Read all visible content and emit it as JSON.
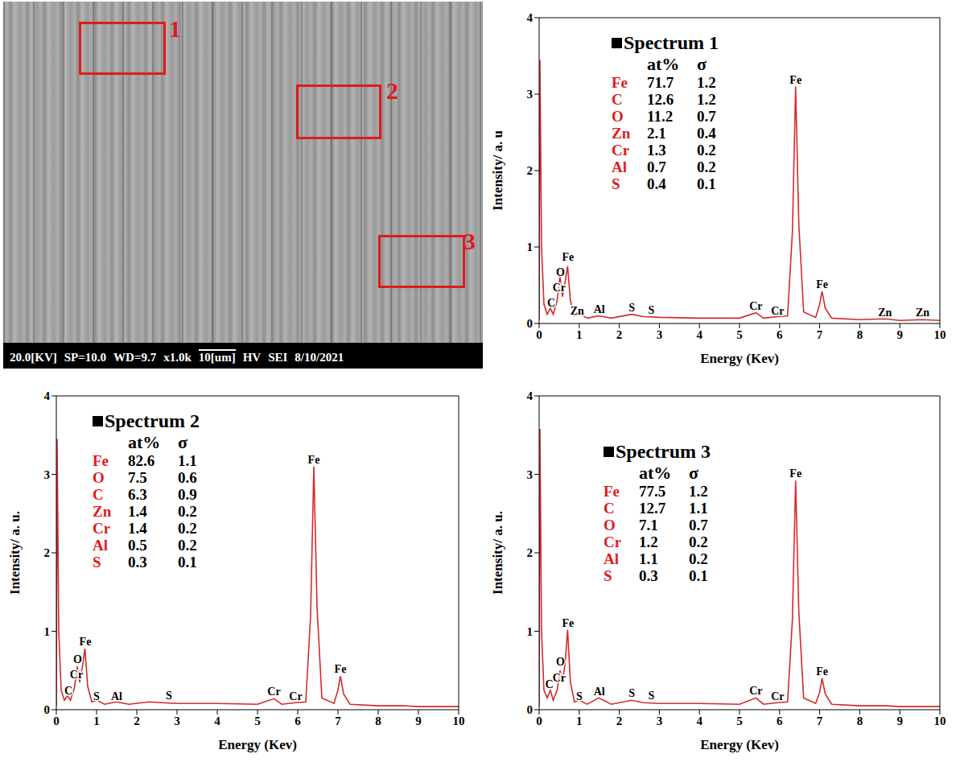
{
  "image": {
    "region_labels": [
      "1",
      "2",
      "3"
    ],
    "info_bar": [
      "20.0[KV]",
      "SP=10.0",
      "WD=9.7",
      "x1.0k",
      "10[um]",
      "HV",
      "SEI",
      "8/10/2021"
    ]
  },
  "chart_data": [
    {
      "type": "line",
      "title": "Spectrum 1",
      "x_label": "Energy (Kev)",
      "y_label": "Intensity/ a. u",
      "xlim": [
        0,
        10
      ],
      "xticks": [
        0,
        1,
        2,
        3,
        4,
        5,
        6,
        7,
        8,
        9,
        10
      ],
      "ylim": [
        0,
        4
      ],
      "yticks": [
        0,
        1,
        2,
        3,
        4
      ],
      "grid": false,
      "color": "#d42a2a",
      "x": [
        0,
        0.02,
        0.06,
        0.12,
        0.2,
        0.28,
        0.35,
        0.45,
        0.52,
        0.58,
        0.65,
        0.71,
        0.78,
        0.88,
        1.01,
        1.2,
        1.49,
        1.8,
        2.31,
        2.6,
        3.0,
        4.0,
        5.0,
        5.41,
        5.6,
        5.95,
        6.2,
        6.32,
        6.4,
        6.48,
        6.6,
        6.9,
        7.0,
        7.06,
        7.14,
        7.3,
        8.0,
        8.63,
        9.0,
        9.57,
        10.0
      ],
      "values": [
        0.05,
        3.45,
        1.0,
        0.25,
        0.12,
        0.2,
        0.12,
        0.3,
        0.62,
        0.35,
        0.55,
        0.75,
        0.3,
        0.1,
        0.13,
        0.07,
        0.1,
        0.07,
        0.12,
        0.09,
        0.08,
        0.07,
        0.07,
        0.14,
        0.07,
        0.09,
        0.1,
        1.2,
        3.1,
        1.3,
        0.15,
        0.08,
        0.25,
        0.42,
        0.2,
        0.07,
        0.05,
        0.06,
        0.04,
        0.05,
        0.04
      ],
      "annotations": [
        {
          "text": "C",
          "x": 0.3,
          "y": 0.22
        },
        {
          "text": "Cr",
          "x": 0.5,
          "y": 0.42
        },
        {
          "text": "O",
          "x": 0.53,
          "y": 0.62
        },
        {
          "text": "Fe",
          "x": 0.72,
          "y": 0.82
        },
        {
          "text": "Zn",
          "x": 0.95,
          "y": 0.12
        },
        {
          "text": "Al",
          "x": 1.5,
          "y": 0.14
        },
        {
          "text": "S",
          "x": 2.31,
          "y": 0.16
        },
        {
          "text": "S",
          "x": 2.8,
          "y": 0.13
        },
        {
          "text": "Cr",
          "x": 5.41,
          "y": 0.18
        },
        {
          "text": "Cr",
          "x": 5.95,
          "y": 0.12
        },
        {
          "text": "Fe",
          "x": 6.4,
          "y": 3.14
        },
        {
          "text": "Fe",
          "x": 7.06,
          "y": 0.46
        },
        {
          "text": "Zn",
          "x": 8.63,
          "y": 0.09
        },
        {
          "text": "Zn",
          "x": 9.57,
          "y": 0.09
        }
      ],
      "composition": {
        "columns": [
          "at%",
          "σ"
        ],
        "rows": [
          [
            "Fe",
            71.7,
            1.2
          ],
          [
            "C",
            12.6,
            1.2
          ],
          [
            "O",
            11.2,
            0.7
          ],
          [
            "Zn",
            2.1,
            0.4
          ],
          [
            "Cr",
            1.3,
            0.2
          ],
          [
            "Al",
            0.7,
            0.2
          ],
          [
            "S",
            0.4,
            0.1
          ]
        ]
      }
    },
    {
      "type": "line",
      "title": "Spectrum 2",
      "x_label": "Energy (Kev)",
      "y_label": "Intensity/ a. u.",
      "xlim": [
        0,
        10
      ],
      "xticks": [
        0,
        1,
        2,
        3,
        4,
        5,
        6,
        7,
        8,
        9,
        10
      ],
      "ylim": [
        0,
        4
      ],
      "yticks": [
        0,
        1,
        2,
        3,
        4
      ],
      "grid": false,
      "color": "#d42a2a",
      "x": [
        0,
        0.02,
        0.06,
        0.12,
        0.2,
        0.28,
        0.35,
        0.45,
        0.52,
        0.58,
        0.65,
        0.71,
        0.78,
        0.88,
        1.01,
        1.2,
        1.49,
        1.8,
        2.31,
        2.6,
        3.0,
        4.0,
        5.0,
        5.41,
        5.6,
        5.95,
        6.2,
        6.32,
        6.4,
        6.48,
        6.6,
        6.9,
        7.0,
        7.06,
        7.14,
        7.3,
        8.0,
        8.63,
        9.0,
        9.57,
        10.0
      ],
      "values": [
        0.05,
        3.45,
        1.0,
        0.25,
        0.12,
        0.18,
        0.12,
        0.28,
        0.55,
        0.35,
        0.55,
        0.78,
        0.3,
        0.1,
        0.12,
        0.07,
        0.1,
        0.07,
        0.1,
        0.09,
        0.08,
        0.08,
        0.07,
        0.14,
        0.07,
        0.09,
        0.1,
        1.2,
        3.1,
        1.3,
        0.15,
        0.08,
        0.25,
        0.43,
        0.2,
        0.07,
        0.05,
        0.05,
        0.04,
        0.04,
        0.04
      ],
      "annotations": [
        {
          "text": "C",
          "x": 0.3,
          "y": 0.2
        },
        {
          "text": "Cr",
          "x": 0.5,
          "y": 0.4
        },
        {
          "text": "O",
          "x": 0.53,
          "y": 0.6
        },
        {
          "text": "Fe",
          "x": 0.72,
          "y": 0.82
        },
        {
          "text": "S",
          "x": 1.0,
          "y": 0.12
        },
        {
          "text": "Al",
          "x": 1.5,
          "y": 0.12
        },
        {
          "text": "S",
          "x": 2.8,
          "y": 0.13
        },
        {
          "text": "Cr",
          "x": 5.41,
          "y": 0.18
        },
        {
          "text": "Cr",
          "x": 5.95,
          "y": 0.12
        },
        {
          "text": "Fe",
          "x": 6.4,
          "y": 3.14
        },
        {
          "text": "Fe",
          "x": 7.06,
          "y": 0.47
        }
      ],
      "composition": {
        "columns": [
          "at%",
          "σ"
        ],
        "rows": [
          [
            "Fe",
            82.6,
            1.1
          ],
          [
            "O",
            7.5,
            0.6
          ],
          [
            "C",
            6.3,
            0.9
          ],
          [
            "Zn",
            1.4,
            0.2
          ],
          [
            "Cr",
            1.4,
            0.2
          ],
          [
            "Al",
            0.5,
            0.2
          ],
          [
            "S",
            0.3,
            0.1
          ]
        ]
      }
    },
    {
      "type": "line",
      "title": "Spectrum 3",
      "x_label": "Energy (Kev)",
      "y_label": "Intensity/ a. u.",
      "xlim": [
        0,
        10
      ],
      "xticks": [
        0,
        1,
        2,
        3,
        4,
        5,
        6,
        7,
        8,
        9,
        10
      ],
      "ylim": [
        0,
        4
      ],
      "yticks": [
        0,
        1,
        2,
        3,
        4
      ],
      "grid": false,
      "color": "#d42a2a",
      "x": [
        0,
        0.02,
        0.06,
        0.12,
        0.2,
        0.28,
        0.35,
        0.45,
        0.52,
        0.58,
        0.65,
        0.71,
        0.78,
        0.88,
        1.01,
        1.2,
        1.49,
        1.8,
        2.31,
        2.6,
        3.0,
        4.0,
        5.0,
        5.41,
        5.6,
        5.95,
        6.2,
        6.32,
        6.4,
        6.48,
        6.6,
        6.9,
        7.0,
        7.06,
        7.14,
        7.3,
        8.0,
        8.63,
        9.0,
        9.57,
        10.0
      ],
      "values": [
        0.05,
        3.58,
        1.0,
        0.25,
        0.15,
        0.25,
        0.12,
        0.25,
        0.5,
        0.35,
        0.6,
        1.02,
        0.35,
        0.1,
        0.12,
        0.07,
        0.15,
        0.07,
        0.12,
        0.09,
        0.08,
        0.08,
        0.07,
        0.15,
        0.07,
        0.09,
        0.1,
        1.15,
        2.92,
        1.25,
        0.15,
        0.08,
        0.22,
        0.4,
        0.2,
        0.07,
        0.05,
        0.05,
        0.04,
        0.04,
        0.04
      ],
      "annotations": [
        {
          "text": "C",
          "x": 0.25,
          "y": 0.28
        },
        {
          "text": "Cr",
          "x": 0.5,
          "y": 0.36
        },
        {
          "text": "O",
          "x": 0.53,
          "y": 0.56
        },
        {
          "text": "Fe",
          "x": 0.72,
          "y": 1.06
        },
        {
          "text": "S",
          "x": 1.0,
          "y": 0.12
        },
        {
          "text": "Al",
          "x": 1.5,
          "y": 0.18
        },
        {
          "text": "S",
          "x": 2.31,
          "y": 0.16
        },
        {
          "text": "S",
          "x": 2.8,
          "y": 0.13
        },
        {
          "text": "Cr",
          "x": 5.41,
          "y": 0.19
        },
        {
          "text": "Cr",
          "x": 5.95,
          "y": 0.12
        },
        {
          "text": "Fe",
          "x": 6.4,
          "y": 2.96
        },
        {
          "text": "Fe",
          "x": 7.06,
          "y": 0.44
        }
      ],
      "composition": {
        "columns": [
          "at%",
          "σ"
        ],
        "rows": [
          [
            "Fe",
            77.5,
            1.2
          ],
          [
            "C",
            12.7,
            1.1
          ],
          [
            "O",
            7.1,
            0.7
          ],
          [
            "Cr",
            1.2,
            0.2
          ],
          [
            "Al",
            1.1,
            0.2
          ],
          [
            "S",
            0.3,
            0.1
          ]
        ]
      }
    }
  ]
}
